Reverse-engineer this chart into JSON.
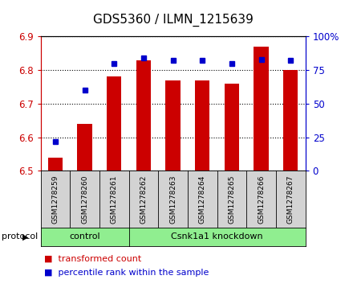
{
  "title": "GDS5360 / ILMN_1215639",
  "samples": [
    "GSM1278259",
    "GSM1278260",
    "GSM1278261",
    "GSM1278262",
    "GSM1278263",
    "GSM1278264",
    "GSM1278265",
    "GSM1278266",
    "GSM1278267"
  ],
  "bar_values": [
    6.54,
    6.64,
    6.78,
    6.83,
    6.77,
    6.77,
    6.76,
    6.87,
    6.8
  ],
  "percentile_values": [
    22,
    60,
    80,
    84,
    82,
    82,
    80,
    83,
    82
  ],
  "bar_color": "#cc0000",
  "dot_color": "#0000cc",
  "ylim_left": [
    6.5,
    6.9
  ],
  "ylim_right": [
    0,
    100
  ],
  "yticks_left": [
    6.5,
    6.6,
    6.7,
    6.8,
    6.9
  ],
  "yticks_right": [
    0,
    25,
    50,
    75,
    100
  ],
  "ytick_labels_right": [
    "0",
    "25",
    "50",
    "75",
    "100%"
  ],
  "ctrl_count": 3,
  "kd_count": 6,
  "ctrl_label": "control",
  "kd_label": "Csnk1a1 knockdown",
  "group_color": "#90ee90",
  "protocol_label": "protocol",
  "legend_bar_label": "transformed count",
  "legend_dot_label": "percentile rank within the sample",
  "bar_width": 0.5,
  "title_fontsize": 11,
  "axis_fontsize": 8.5,
  "sample_fontsize": 6.5,
  "legend_fontsize": 8,
  "proto_fontsize": 8
}
